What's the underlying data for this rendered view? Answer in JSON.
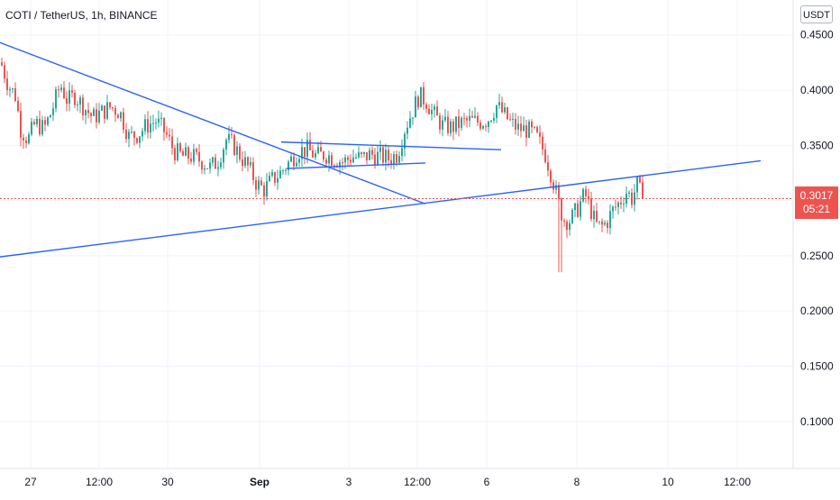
{
  "header": {
    "title": "COTI / TetherUS, 1h, BINANCE",
    "currency": "USDT"
  },
  "last_price": {
    "value": "0.3017",
    "countdown": "05:21",
    "color": "#ef5350"
  },
  "colors": {
    "up": "#26a69a",
    "down": "#ef5350",
    "trendline": "#2962ff",
    "grid": "#f0f3fa",
    "text": "#131722"
  },
  "chart_data": {
    "type": "candlestick",
    "symbol": "COTI / TetherUS",
    "interval": "1h",
    "exchange": "BINANCE",
    "y_axis": {
      "unit": "USDT",
      "ticks": [
        "0.4500",
        "0.4000",
        "0.3500",
        "0.2500",
        "0.2000",
        "0.1500",
        "0.1000"
      ],
      "range": [
        0.05,
        0.46
      ]
    },
    "x_axis": {
      "ticks": [
        "27",
        "12:00",
        "30",
        "Sep",
        "3",
        "12:00",
        "6",
        "8",
        "10",
        "12:00"
      ]
    },
    "last_price": 0.3017,
    "price_path": [
      [
        0,
        0.425
      ],
      [
        8,
        0.405
      ],
      [
        16,
        0.395
      ],
      [
        22,
        0.365
      ],
      [
        30,
        0.355
      ],
      [
        38,
        0.37
      ],
      [
        48,
        0.365
      ],
      [
        56,
        0.38
      ],
      [
        66,
        0.405
      ],
      [
        74,
        0.39
      ],
      [
        82,
        0.395
      ],
      [
        92,
        0.385
      ],
      [
        102,
        0.375
      ],
      [
        112,
        0.38
      ],
      [
        122,
        0.385
      ],
      [
        132,
        0.38
      ],
      [
        142,
        0.358
      ],
      [
        152,
        0.36
      ],
      [
        162,
        0.368
      ],
      [
        172,
        0.372
      ],
      [
        182,
        0.362
      ],
      [
        192,
        0.345
      ],
      [
        202,
        0.34
      ],
      [
        212,
        0.34
      ],
      [
        222,
        0.336
      ],
      [
        232,
        0.33
      ],
      [
        240,
        0.335
      ],
      [
        250,
        0.355
      ],
      [
        258,
        0.35
      ],
      [
        266,
        0.34
      ],
      [
        276,
        0.328
      ],
      [
        284,
        0.315
      ],
      [
        292,
        0.31
      ],
      [
        300,
        0.318
      ],
      [
        310,
        0.325
      ],
      [
        320,
        0.335
      ],
      [
        330,
        0.345
      ],
      [
        340,
        0.346
      ],
      [
        350,
        0.34
      ],
      [
        360,
        0.342
      ],
      [
        370,
        0.338
      ],
      [
        380,
        0.335
      ],
      [
        390,
        0.34
      ],
      [
        400,
        0.338
      ],
      [
        410,
        0.342
      ],
      [
        420,
        0.34
      ],
      [
        430,
        0.338
      ],
      [
        440,
        0.342
      ],
      [
        448,
        0.365
      ],
      [
        456,
        0.38
      ],
      [
        464,
        0.395
      ],
      [
        472,
        0.39
      ],
      [
        480,
        0.378
      ],
      [
        490,
        0.368
      ],
      [
        500,
        0.366
      ],
      [
        510,
        0.37
      ],
      [
        520,
        0.372
      ],
      [
        530,
        0.371
      ],
      [
        540,
        0.373
      ],
      [
        550,
        0.386
      ],
      [
        558,
        0.378
      ],
      [
        566,
        0.37
      ],
      [
        574,
        0.365
      ],
      [
        584,
        0.364
      ],
      [
        594,
        0.358
      ],
      [
        604,
        0.342
      ],
      [
        612,
        0.32
      ],
      [
        618,
        0.3
      ],
      [
        624,
        0.283
      ],
      [
        632,
        0.282
      ],
      [
        640,
        0.293
      ],
      [
        648,
        0.306
      ],
      [
        654,
        0.293
      ],
      [
        660,
        0.278
      ],
      [
        666,
        0.276
      ],
      [
        672,
        0.28
      ],
      [
        678,
        0.29
      ],
      [
        686,
        0.298
      ],
      [
        694,
        0.308
      ],
      [
        700,
        0.302
      ],
      [
        706,
        0.314
      ],
      [
        712,
        0.3017
      ]
    ],
    "trendlines": [
      {
        "from": [
          0,
          0.443
        ],
        "to": [
          472,
          0.297
        ]
      },
      {
        "from": [
          0,
          0.249
        ],
        "to": [
          844,
          0.336
        ]
      },
      {
        "from": [
          312,
          0.353
        ],
        "to": [
          556,
          0.346
        ]
      },
      {
        "from": [
          318,
          0.329
        ],
        "to": [
          472,
          0.334
        ]
      }
    ]
  }
}
